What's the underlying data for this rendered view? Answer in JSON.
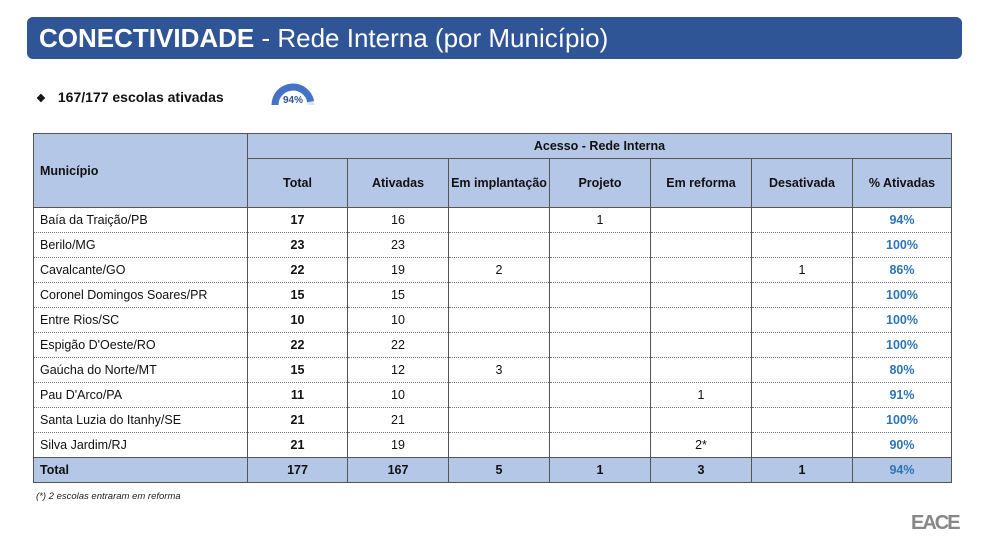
{
  "title": {
    "bold": "CONECTIVIDADE",
    "rest": " - Rede Interna (por Município)"
  },
  "summary": {
    "text": "167/177 escolas ativadas",
    "gauge_label": "94%",
    "gauge_value": 0.94
  },
  "table": {
    "col_municipio": "Município",
    "group_header": "Acesso - Rede Interna",
    "columns": [
      "Total",
      "Ativadas",
      "Em implantação",
      "Projeto",
      "Em reforma",
      "Desativada",
      "% Ativadas"
    ],
    "rows": [
      [
        "Baía da Traição/PB",
        "17",
        "16",
        "",
        "1",
        "",
        "",
        "94%"
      ],
      [
        "Berilo/MG",
        "23",
        "23",
        "",
        "",
        "",
        "",
        "100%"
      ],
      [
        "Cavalcante/GO",
        "22",
        "19",
        "2",
        "",
        "",
        "1",
        "86%"
      ],
      [
        "Coronel Domingos Soares/PR",
        "15",
        "15",
        "",
        "",
        "",
        "",
        "100%"
      ],
      [
        "Entre Rios/SC",
        "10",
        "10",
        "",
        "",
        "",
        "",
        "100%"
      ],
      [
        "Espigão D'Oeste/RO",
        "22",
        "22",
        "",
        "",
        "",
        "",
        "100%"
      ],
      [
        "Gaúcha do Norte/MT",
        "15",
        "12",
        "3",
        "",
        "",
        "",
        "80%"
      ],
      [
        "Pau D'Arco/PA",
        "11",
        "10",
        "",
        "",
        "1",
        "",
        "91%"
      ],
      [
        "Santa Luzia do Itanhy/SE",
        "21",
        "21",
        "",
        "",
        "",
        "",
        "100%"
      ],
      [
        "Silva Jardim/RJ",
        "21",
        "19",
        "",
        "",
        "2*",
        "",
        "90%"
      ]
    ],
    "total": [
      "Total",
      "177",
      "167",
      "5",
      "1",
      "3",
      "1",
      "94%"
    ]
  },
  "footnote": "(*) 2 escolas entraram em reforma",
  "logo": "EACE",
  "colors": {
    "banner": "#2f5597",
    "header": "#b4c7e7",
    "percent": "#2e75b6"
  }
}
